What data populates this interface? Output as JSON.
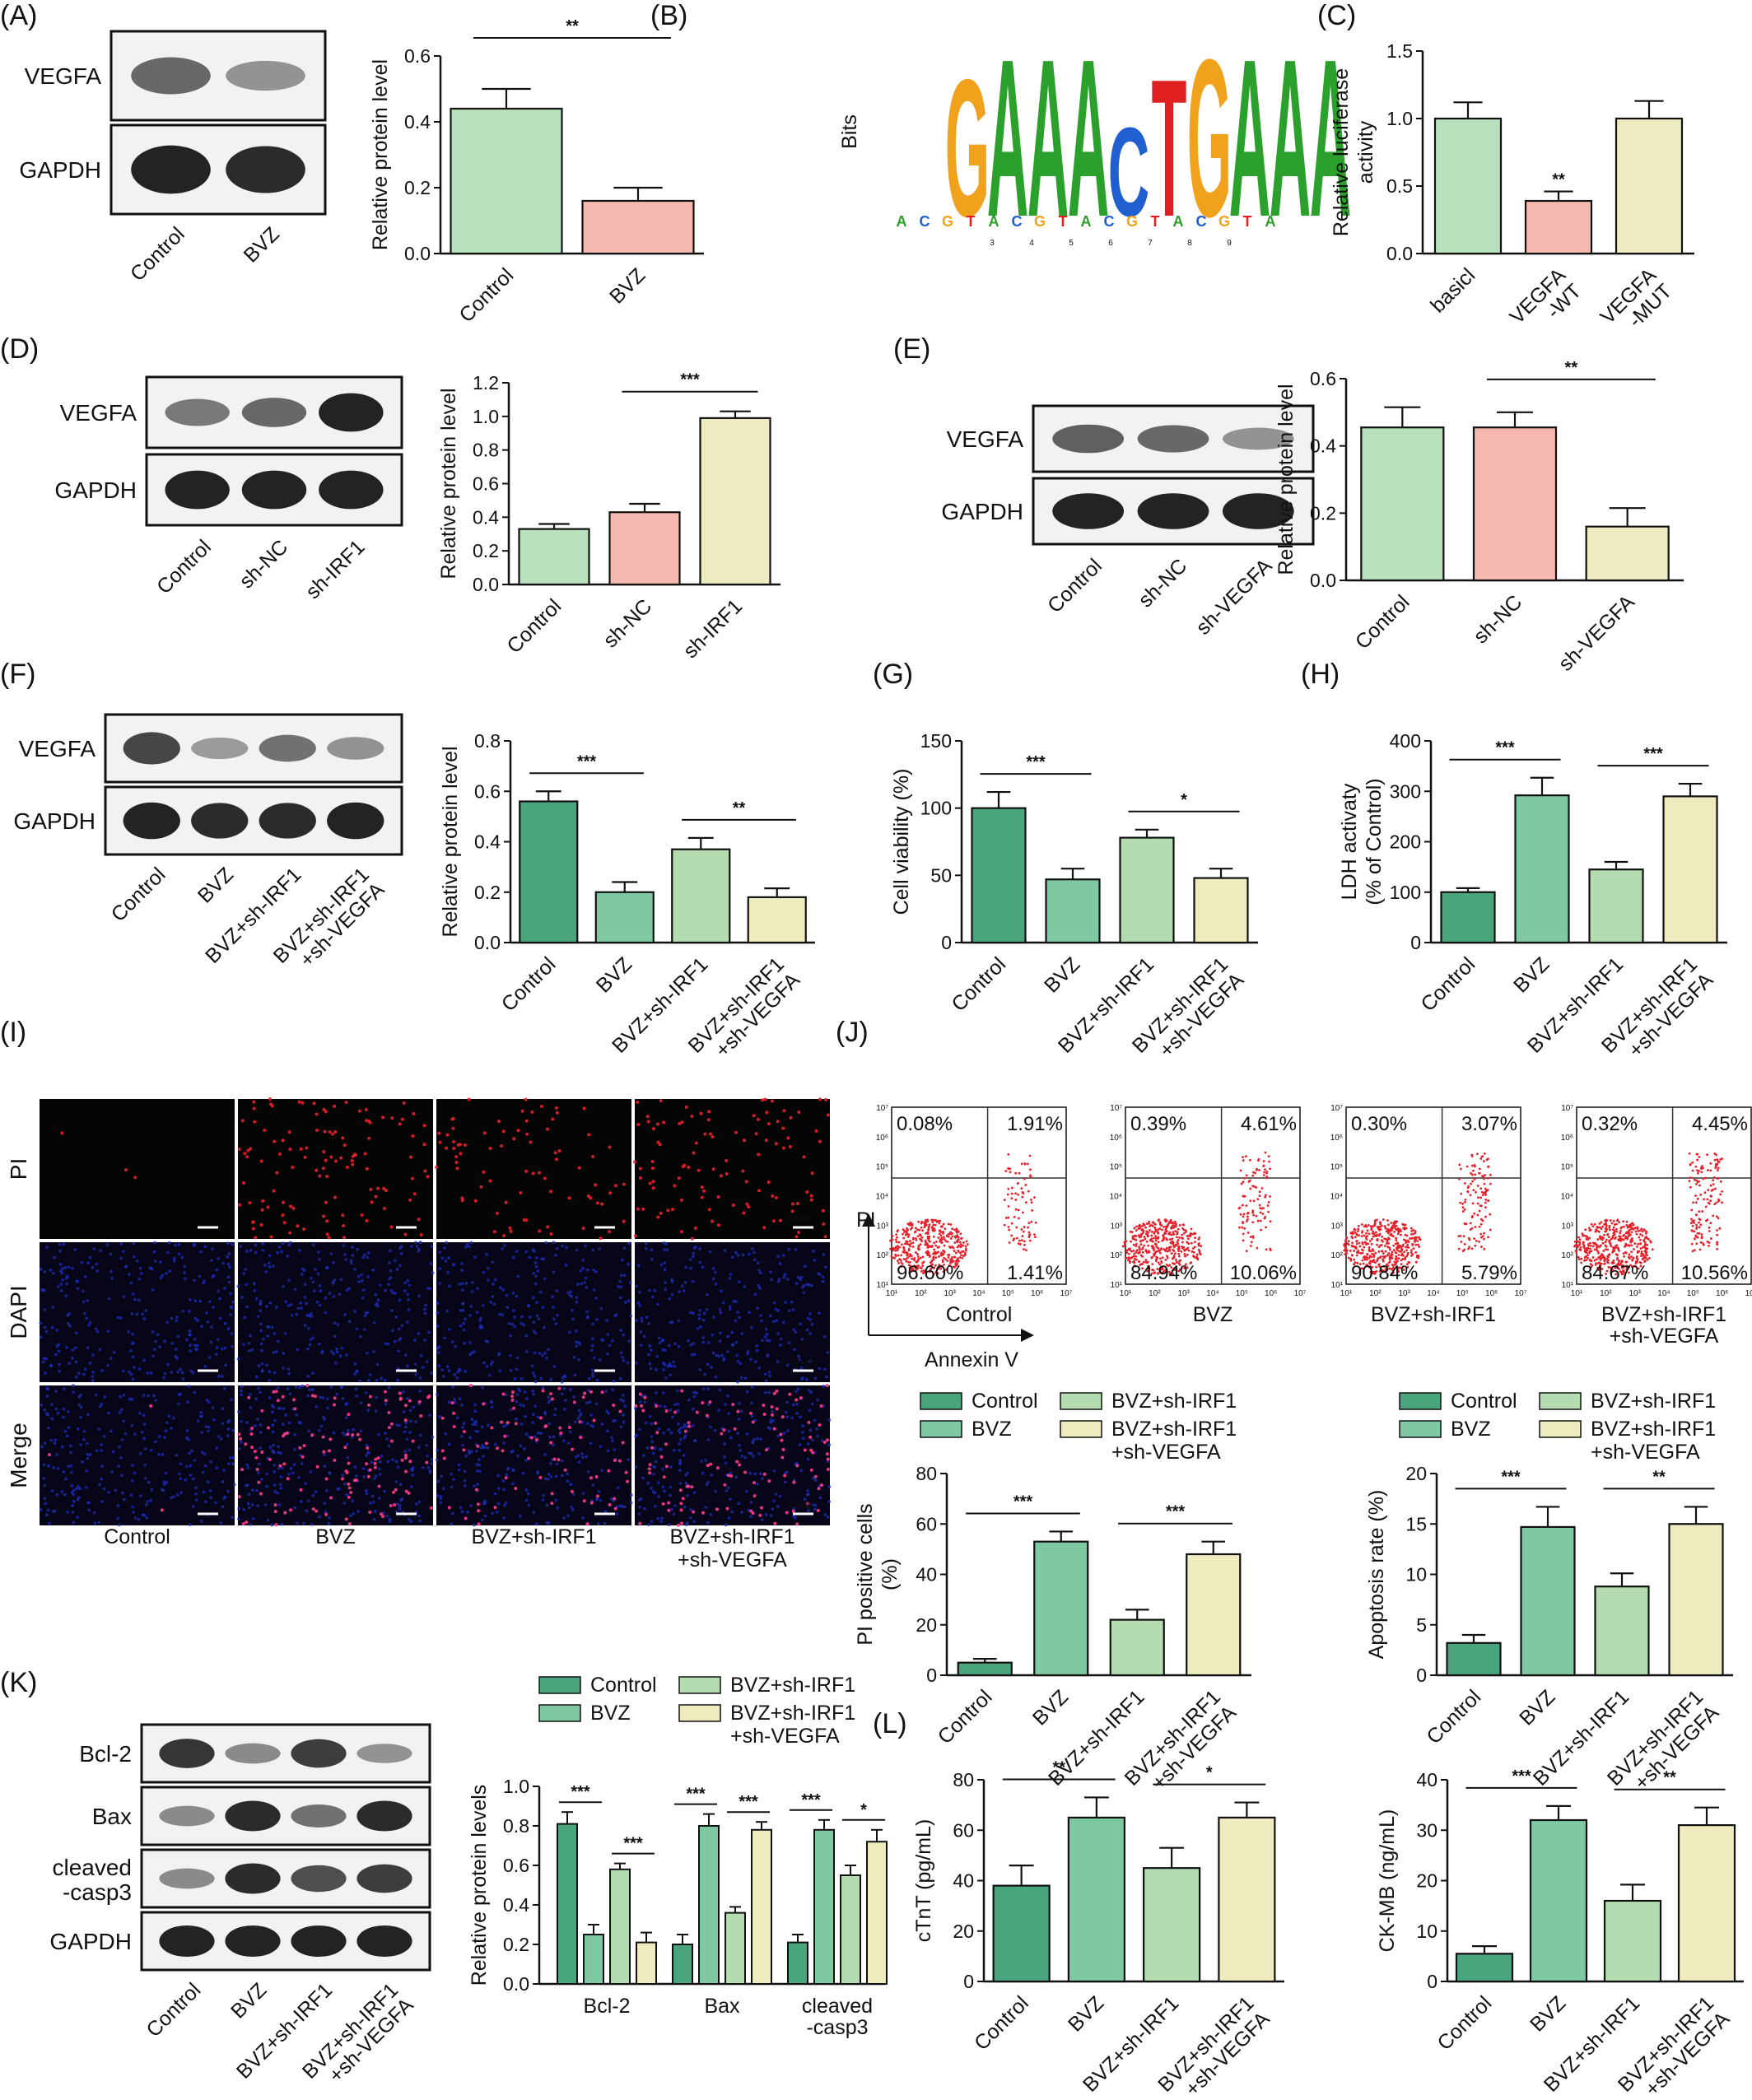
{
  "panel_labels": [
    "(A)",
    "(B)",
    "(C)",
    "(D)",
    "(E)",
    "(F)",
    "(G)",
    "(H)",
    "(I)",
    "(J)",
    "(K)",
    "(L)"
  ],
  "colors": {
    "control_pale": "#b9e0bd",
    "pink": "#f4b8ae",
    "yellow": "#ecebc2",
    "ctrl_dark": "#4aa57f",
    "bvz": "#7ec8a2",
    "irf1": "#b4dcb0",
    "irf1_vegfa": "#eeebbf",
    "red": "#e8202a",
    "blue": "#1f2fbf"
  },
  "blots": {
    "A": {
      "rows": [
        "VEGFA",
        "GAPDH"
      ],
      "lanes": [
        "Control",
        "BVZ"
      ]
    },
    "D": {
      "rows": [
        "VEGFA",
        "GAPDH"
      ],
      "lanes": [
        "Control",
        "sh-NC",
        "sh-IRF1"
      ]
    },
    "E": {
      "rows": [
        "VEGFA",
        "GAPDH"
      ],
      "lanes": [
        "Control",
        "sh-NC",
        "sh-VEGFA"
      ]
    },
    "F": {
      "rows": [
        "VEGFA",
        "GAPDH"
      ],
      "lanes": [
        "Control",
        "BVZ",
        "BVZ+sh-IRF1",
        "BVZ+sh-IRF1\n+sh-VEGFA"
      ]
    },
    "K": {
      "rows": [
        "Bcl-2",
        "Bax",
        "cleaved\n-casp3",
        "GAPDH"
      ],
      "lanes": [
        "Control",
        "BVZ",
        "BVZ+sh-IRF1",
        "BVZ+sh-IRF1\n+sh-VEGFA"
      ]
    }
  },
  "motif": {
    "ylabel": "Bits",
    "letters": [
      "G",
      "A",
      "A",
      "A",
      "C",
      "T",
      "G",
      "A",
      "A",
      "A"
    ],
    "positions": [
      "3",
      "4",
      "5",
      "6",
      "7",
      "8",
      "9"
    ]
  },
  "microscopy": {
    "rows": [
      "PI",
      "DAPI",
      "Merge"
    ],
    "columns": [
      "Control",
      "BVZ",
      "BVZ+sh-IRF1",
      "BVZ+sh-IRF1\n+sh-VEGFA"
    ],
    "scale_bar": "100μm"
  },
  "flow": {
    "xlabel": "Annexin V",
    "ylabel": "PI",
    "plots": [
      {
        "name": "Control",
        "ul": "0.08%",
        "ur": "1.91%",
        "ll": "96.60%",
        "lr": "1.41%"
      },
      {
        "name": "BVZ",
        "ul": "0.39%",
        "ur": "4.61%",
        "ll": "84.94%",
        "lr": "10.06%"
      },
      {
        "name": "BVZ+sh-IRF1",
        "ul": "0.30%",
        "ur": "3.07%",
        "ll": "90.84%",
        "lr": "5.79%"
      },
      {
        "name": "BVZ+sh-IRF1\n+sh-VEGFA",
        "ul": "0.32%",
        "ur": "4.45%",
        "ll": "84.67%",
        "lr": "10.56%"
      }
    ],
    "ticks": [
      "10¹",
      "10²",
      "10³",
      "10⁴",
      "10⁵",
      "10⁶",
      "10⁷"
    ]
  },
  "legend": {
    "items": [
      "Control",
      "BVZ",
      "BVZ+sh-IRF1",
      "BVZ+sh-IRF1\n+sh-VEGFA"
    ]
  },
  "chart_data": [
    {
      "id": "A",
      "type": "bar",
      "categories": [
        "Control",
        "BVZ"
      ],
      "values": [
        0.44,
        0.16
      ],
      "errors": [
        0.06,
        0.04
      ],
      "ylabel": "Relative protein level",
      "ylim": [
        0,
        0.6
      ],
      "yticks": [
        "0.0",
        "0.2",
        "0.4",
        "0.6"
      ],
      "sig": [
        {
          "from": 0,
          "to": 1,
          "label": "**"
        }
      ]
    },
    {
      "id": "C",
      "type": "bar",
      "categories": [
        "basicl",
        "VEGFA\n-WT",
        "VEGFA\n-MUT"
      ],
      "values": [
        1.0,
        0.39,
        1.0
      ],
      "errors": [
        0.12,
        0.07,
        0.13
      ],
      "ylabel": "Relative luciferase\nactivity",
      "ylim": [
        0,
        1.5
      ],
      "yticks": [
        "0.0",
        "0.5",
        "1.0",
        "1.5"
      ],
      "sig": [
        {
          "bar": 1,
          "label": "**"
        }
      ]
    },
    {
      "id": "D",
      "type": "bar",
      "categories": [
        "Control",
        "sh-NC",
        "sh-IRF1"
      ],
      "values": [
        0.33,
        0.43,
        0.99
      ],
      "errors": [
        0.03,
        0.05,
        0.04
      ],
      "ylabel": "Relative protein level",
      "ylim": [
        0,
        1.2
      ],
      "yticks": [
        "0.0",
        "0.2",
        "0.4",
        "0.6",
        "0.8",
        "1.0",
        "1.2"
      ],
      "sig": [
        {
          "from": 1,
          "to": 2,
          "label": "***"
        }
      ]
    },
    {
      "id": "E",
      "type": "bar",
      "categories": [
        "Control",
        "sh-NC",
        "sh-VEGFA"
      ],
      "values": [
        0.455,
        0.455,
        0.16
      ],
      "errors": [
        0.06,
        0.045,
        0.055
      ],
      "ylabel": "Relative protein level",
      "ylim": [
        0,
        0.6
      ],
      "yticks": [
        "0.0",
        "0.2",
        "0.4",
        "0.6"
      ],
      "sig": [
        {
          "from": 1,
          "to": 2,
          "label": "**"
        }
      ]
    },
    {
      "id": "F",
      "type": "bar",
      "categories": [
        "Control",
        "BVZ",
        "BVZ+sh-IRF1",
        "BVZ+sh-IRF1\n+sh-VEGFA"
      ],
      "values": [
        0.56,
        0.2,
        0.37,
        0.18
      ],
      "errors": [
        0.04,
        0.04,
        0.045,
        0.035
      ],
      "ylabel": "Relative protein level",
      "ylim": [
        0,
        0.8
      ],
      "yticks": [
        "0.0",
        "0.2",
        "0.4",
        "0.6",
        "0.8"
      ],
      "sig": [
        {
          "from": 0,
          "to": 1,
          "label": "***"
        },
        {
          "from": 2,
          "to": 3,
          "label": "**"
        }
      ]
    },
    {
      "id": "G",
      "type": "bar",
      "categories": [
        "Control",
        "BVZ",
        "BVZ+sh-IRF1",
        "BVZ+sh-IRF1\n+sh-VEGFA"
      ],
      "values": [
        100,
        47,
        78,
        48
      ],
      "errors": [
        12,
        8,
        6,
        7
      ],
      "ylabel": "Cell viability (%)",
      "ylim": [
        0,
        150
      ],
      "yticks": [
        "0",
        "50",
        "100",
        "150"
      ],
      "sig": [
        {
          "from": 0,
          "to": 1,
          "label": "***"
        },
        {
          "from": 2,
          "to": 3,
          "label": "*"
        }
      ]
    },
    {
      "id": "H",
      "type": "bar",
      "categories": [
        "Control",
        "BVZ",
        "BVZ+sh-IRF1",
        "BVZ+sh-IRF1\n+sh-VEGFA"
      ],
      "values": [
        100,
        292,
        145,
        290
      ],
      "errors": [
        8,
        35,
        15,
        25
      ],
      "ylabel": "LDH activaty\n(% of Control)",
      "ylim": [
        0,
        400
      ],
      "yticks": [
        "0",
        "100",
        "200",
        "300",
        "400"
      ],
      "sig": [
        {
          "from": 0,
          "to": 1,
          "label": "***"
        },
        {
          "from": 2,
          "to": 3,
          "label": "***"
        }
      ]
    },
    {
      "id": "J1",
      "type": "bar",
      "categories": [
        "Control",
        "BVZ",
        "BVZ+sh-IRF1",
        "BVZ+sh-IRF1\n+sh-VEGFA"
      ],
      "values": [
        5,
        53,
        22,
        48
      ],
      "errors": [
        1.5,
        4,
        4,
        5
      ],
      "ylabel": "PI positive cells\n(%)",
      "ylim": [
        0,
        80
      ],
      "yticks": [
        "0",
        "20",
        "40",
        "60",
        "80"
      ],
      "sig": [
        {
          "from": 0,
          "to": 1,
          "label": "***"
        },
        {
          "from": 2,
          "to": 3,
          "label": "***"
        }
      ]
    },
    {
      "id": "J2",
      "type": "bar",
      "categories": [
        "Control",
        "BVZ",
        "BVZ+sh-IRF1",
        "BVZ+sh-IRF1\n+sh-VEGFA"
      ],
      "values": [
        3.2,
        14.7,
        8.8,
        15.0
      ],
      "errors": [
        0.8,
        2.0,
        1.3,
        1.7
      ],
      "ylabel": "Apoptosis rate (%)",
      "ylim": [
        0,
        20
      ],
      "yticks": [
        "0",
        "5",
        "10",
        "15",
        "20"
      ],
      "sig": [
        {
          "from": 0,
          "to": 1,
          "label": "***"
        },
        {
          "from": 2,
          "to": 3,
          "label": "**"
        }
      ]
    },
    {
      "id": "K",
      "type": "bar",
      "categories": [
        "Bcl-2",
        "Bax",
        "cleaved\n-casp3"
      ],
      "series": [
        {
          "name": "Control",
          "values": [
            0.81,
            0.2,
            0.21
          ],
          "errors": [
            0.06,
            0.05,
            0.04
          ]
        },
        {
          "name": "BVZ",
          "values": [
            0.25,
            0.8,
            0.78
          ],
          "errors": [
            0.05,
            0.06,
            0.05
          ]
        },
        {
          "name": "BVZ+sh-IRF1",
          "values": [
            0.58,
            0.36,
            0.55
          ],
          "errors": [
            0.03,
            0.03,
            0.05
          ]
        },
        {
          "name": "BVZ+sh-IRF1\n+sh-VEGFA",
          "values": [
            0.21,
            0.78,
            0.72
          ],
          "errors": [
            0.05,
            0.04,
            0.06
          ]
        }
      ],
      "ylabel": "Relative protein levels",
      "ylim": [
        0,
        1.0
      ],
      "yticks": [
        "0.0",
        "0.2",
        "0.4",
        "0.6",
        "0.8",
        "1.0"
      ],
      "sig": [
        {
          "group": 0,
          "from": 0,
          "to": 1,
          "label": "***"
        },
        {
          "group": 0,
          "from": 2,
          "to": 3,
          "label": "***"
        },
        {
          "group": 1,
          "from": 0,
          "to": 1,
          "label": "***"
        },
        {
          "group": 1,
          "from": 2,
          "to": 3,
          "label": "***"
        },
        {
          "group": 2,
          "from": 0,
          "to": 1,
          "label": "***"
        },
        {
          "group": 2,
          "from": 2,
          "to": 3,
          "label": "*"
        }
      ]
    },
    {
      "id": "L1",
      "type": "bar",
      "categories": [
        "Control",
        "BVZ",
        "BVZ+sh-IRF1",
        "BVZ+sh-IRF1\n+sh-VEGFA"
      ],
      "values": [
        38,
        65,
        45,
        65
      ],
      "errors": [
        8,
        8,
        8,
        6
      ],
      "ylabel": "cTnT (pg/mL)",
      "ylim": [
        0,
        80
      ],
      "yticks": [
        "0",
        "20",
        "40",
        "60",
        "80"
      ],
      "sig": [
        {
          "from": 0,
          "to": 1,
          "label": "**"
        },
        {
          "from": 2,
          "to": 3,
          "label": "*"
        }
      ]
    },
    {
      "id": "L2",
      "type": "bar",
      "categories": [
        "Control",
        "BVZ",
        "BVZ+sh-IRF1",
        "BVZ+sh-IRF1\n+sh-VEGFA"
      ],
      "values": [
        5.5,
        32,
        16,
        31
      ],
      "errors": [
        1.5,
        2.8,
        3.2,
        3.5
      ],
      "ylabel": "CK-MB (ng/mL)",
      "ylim": [
        0,
        40
      ],
      "yticks": [
        "0",
        "10",
        "20",
        "30",
        "40"
      ],
      "sig": [
        {
          "from": 0,
          "to": 1,
          "label": "***"
        },
        {
          "from": 2,
          "to": 3,
          "label": "**"
        }
      ]
    }
  ]
}
